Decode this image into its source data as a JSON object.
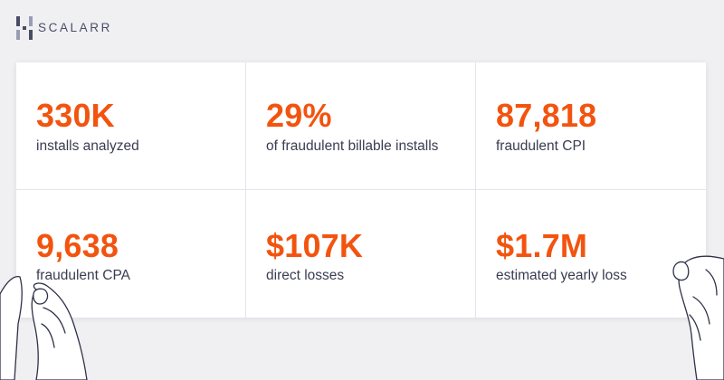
{
  "brand": {
    "name": "SCALARR",
    "logo_icon": "scalarr-logo-icon"
  },
  "stats": [
    {
      "value": "330K",
      "label": "installs analyzed"
    },
    {
      "value": "29%",
      "label": "of fraudulent billable installs"
    },
    {
      "value": "87,818",
      "label": "fraudulent CPI"
    },
    {
      "value": "9,638",
      "label": "fraudulent CPA"
    },
    {
      "value": "$107K",
      "label": "direct losses"
    },
    {
      "value": "$1.7M",
      "label": "estimated yearly loss"
    }
  ],
  "colors": {
    "accent": "#f2540f",
    "text": "#3a3c52",
    "background": "#f0f0f3",
    "card": "#ffffff"
  }
}
